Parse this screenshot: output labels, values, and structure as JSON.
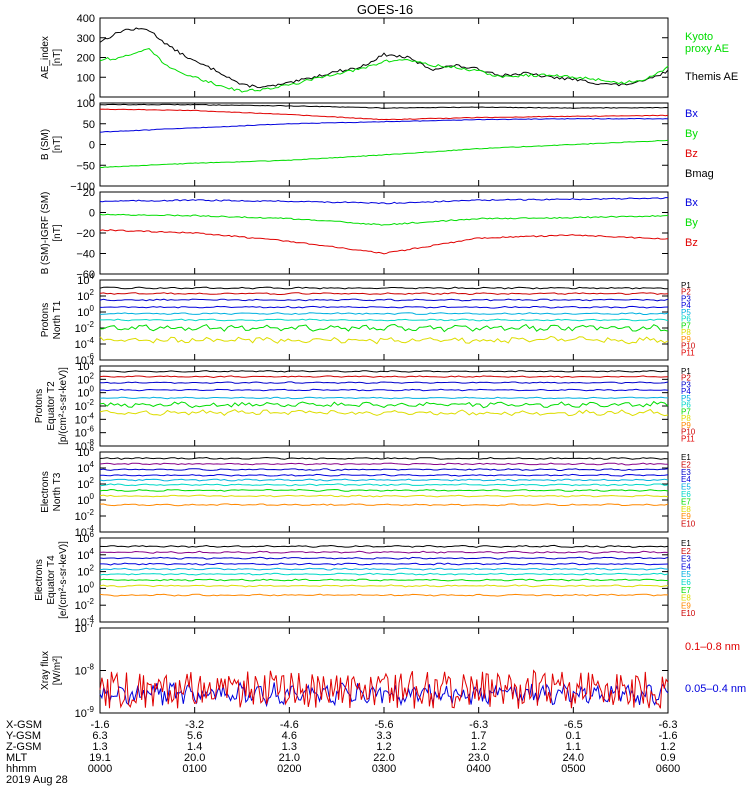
{
  "title": "GOES-16",
  "colors": {
    "black": "#000000",
    "red": "#e00000",
    "green": "#00dd00",
    "blue": "#0000dd",
    "dkblue": "#0000cc",
    "cyan": "#00b0e0",
    "teal": "#00d8c8",
    "yellow": "#dddd00",
    "orange": "#ff8800",
    "maroon": "#cc0000",
    "purple": "#880088",
    "darkred": "#aa0000"
  },
  "time_ticks": [
    "0000",
    "0100",
    "0200",
    "0300",
    "0400",
    "0500",
    "0600"
  ],
  "ephemeris": {
    "rows": [
      {
        "label": "X-GSM",
        "values": [
          "-1.6",
          "-3.2",
          "-4.6",
          "-5.6",
          "-6.3",
          "-6.5",
          "-6.3"
        ]
      },
      {
        "label": "Y-GSM",
        "values": [
          "6.3",
          "5.6",
          "4.6",
          "3.3",
          "1.7",
          "0.1",
          "-1.6"
        ]
      },
      {
        "label": "Z-GSM",
        "values": [
          "1.3",
          "1.4",
          "1.3",
          "1.2",
          "1.2",
          "1.1",
          "1.2"
        ]
      },
      {
        "label": "MLT",
        "values": [
          "19.1",
          "20.0",
          "21.0",
          "22.0",
          "23.0",
          "24.0",
          "0.9"
        ]
      },
      {
        "label": "hhmm",
        "values": [
          "0000",
          "0100",
          "0200",
          "0300",
          "0400",
          "0500",
          "0600"
        ]
      }
    ],
    "date": "2019 Aug 28"
  },
  "chart_data": [
    {
      "type": "line",
      "panel": "AE index",
      "ylabel": [
        "AE_index",
        "[nT]"
      ],
      "ylim": [
        0,
        400
      ],
      "yticks": [
        "0",
        "100",
        "200",
        "300",
        "400"
      ],
      "yvalues": [
        0,
        100,
        200,
        300,
        400
      ],
      "legend": [
        {
          "label": "Kyoto",
          "color": "green"
        },
        {
          "label": "proxy AE",
          "color": "green"
        },
        {
          "label": "Themis AE",
          "color": "black"
        }
      ],
      "series": [
        {
          "color": "black",
          "x": [
            0,
            0.25,
            0.5,
            0.75,
            1,
            1.25,
            1.5,
            1.75,
            2,
            2.25,
            2.5,
            2.75,
            3,
            3.25,
            3.5,
            3.75,
            4,
            4.25,
            4.5,
            4.75,
            5,
            5.25,
            5.5,
            5.75,
            6
          ],
          "y": [
            280,
            340,
            345,
            250,
            180,
            130,
            60,
            50,
            70,
            100,
            130,
            150,
            215,
            200,
            140,
            160,
            140,
            110,
            120,
            100,
            90,
            70,
            60,
            80,
            130
          ]
        },
        {
          "color": "green",
          "x": [
            0,
            0.25,
            0.5,
            0.75,
            1,
            1.25,
            1.5,
            1.75,
            2,
            2.25,
            2.5,
            2.75,
            3,
            3.25,
            3.5,
            3.75,
            4,
            4.25,
            4.5,
            4.75,
            5,
            5.25,
            5.5,
            5.75,
            6
          ],
          "y": [
            190,
            200,
            250,
            140,
            100,
            60,
            30,
            40,
            60,
            90,
            120,
            140,
            180,
            190,
            160,
            150,
            130,
            100,
            110,
            110,
            100,
            90,
            70,
            90,
            150
          ]
        }
      ]
    },
    {
      "type": "line",
      "panel": "B (SM)",
      "ylabel": [
        "B (SM)",
        "[nT]"
      ],
      "ylim": [
        -100,
        100
      ],
      "yticks": [
        "100",
        "50",
        "0",
        "−50",
        "−100"
      ],
      "yvalues": [
        100,
        50,
        0,
        -50,
        -100
      ],
      "legend": [
        {
          "label": "Bx",
          "color": "blue"
        },
        {
          "label": "By",
          "color": "green"
        },
        {
          "label": "Bz",
          "color": "red"
        },
        {
          "label": "Bmag",
          "color": "black"
        }
      ],
      "series": [
        {
          "color": "black",
          "x": [
            0,
            1,
            2,
            3,
            4,
            5,
            6
          ],
          "y": [
            96,
            96,
            93,
            88,
            90,
            88,
            89
          ]
        },
        {
          "color": "red",
          "x": [
            0,
            1,
            2,
            3,
            4,
            5,
            6
          ],
          "y": [
            85,
            82,
            72,
            60,
            65,
            68,
            70
          ]
        },
        {
          "color": "blue",
          "x": [
            0,
            1,
            2,
            3,
            4,
            5,
            6
          ],
          "y": [
            30,
            40,
            50,
            55,
            60,
            62,
            62
          ]
        },
        {
          "color": "green",
          "x": [
            0,
            1,
            2,
            3,
            4,
            5,
            6
          ],
          "y": [
            -55,
            -45,
            -38,
            -25,
            -10,
            0,
            10
          ]
        }
      ]
    },
    {
      "type": "line",
      "panel": "B (SM)-IGRF (SM)",
      "ylabel": [
        "B (SM)-IGRF (SM)",
        "[nT]"
      ],
      "ylim": [
        -60,
        20
      ],
      "yticks": [
        "20",
        "0",
        "−20",
        "−40",
        "−60"
      ],
      "yvalues": [
        20,
        0,
        -20,
        -40,
        -60
      ],
      "legend": [
        {
          "label": "Bx",
          "color": "blue"
        },
        {
          "label": "By",
          "color": "green"
        },
        {
          "label": "Bz",
          "color": "red"
        }
      ],
      "series": [
        {
          "color": "blue",
          "x": [
            0,
            1,
            2,
            3,
            4,
            5,
            6
          ],
          "y": [
            11,
            12,
            11,
            9,
            12,
            13,
            14
          ]
        },
        {
          "color": "green",
          "x": [
            0,
            1,
            2,
            3,
            4,
            5,
            6
          ],
          "y": [
            -2,
            -3,
            -6,
            -12,
            -6,
            -5,
            -3
          ]
        },
        {
          "color": "red",
          "x": [
            0,
            1,
            2,
            3,
            4,
            5,
            6
          ],
          "y": [
            -17,
            -20,
            -28,
            -40,
            -25,
            -22,
            -26
          ]
        }
      ]
    },
    {
      "type": "line",
      "panel": "Protons North T1",
      "ylabel": [
        "Protons",
        "North T1"
      ],
      "ylog": true,
      "ylim": [
        -6,
        4
      ],
      "ytick_exp": [
        "4",
        "2",
        "0",
        "-2",
        "-4",
        "-6"
      ],
      "channels": [
        "P1",
        "P2",
        "P3",
        "P4",
        "P5",
        "P6",
        "P7",
        "P8",
        "P9",
        "P10",
        "P11"
      ],
      "series": [
        {
          "color": "black",
          "level": 3.0
        },
        {
          "color": "maroon",
          "level": 2.3
        },
        {
          "color": "dkblue",
          "level": 1.5
        },
        {
          "color": "blue",
          "level": 0.6
        },
        {
          "color": "cyan",
          "level": -0.2
        },
        {
          "color": "teal",
          "level": -1.0
        },
        {
          "color": "green",
          "level": -2.0
        },
        {
          "color": "yellow",
          "level": -3.5
        }
      ]
    },
    {
      "type": "line",
      "panel": "Protons Equator T2",
      "ylabel": [
        "Protons",
        "Equator T2",
        "[p/(cm²-s-sr-keV)]"
      ],
      "ylog": true,
      "ylim": [
        -8,
        4
      ],
      "ytick_exp": [
        "4",
        "2",
        "0",
        "-2",
        "-4",
        "-6",
        "-8"
      ],
      "channels": [
        "P1",
        "P2",
        "P3",
        "P4",
        "P5",
        "P6",
        "P7",
        "P8",
        "P9",
        "P10",
        "P11"
      ],
      "series": [
        {
          "color": "black",
          "level": 3.2
        },
        {
          "color": "maroon",
          "level": 2.4
        },
        {
          "color": "dkblue",
          "level": 1.5
        },
        {
          "color": "blue",
          "level": 0.4
        },
        {
          "color": "cyan",
          "level": -0.8
        },
        {
          "color": "green",
          "level": -1.8
        },
        {
          "color": "yellow",
          "level": -3.0
        }
      ]
    },
    {
      "type": "line",
      "panel": "Electrons North T3",
      "ylabel": [
        "Electrons",
        "North T3"
      ],
      "ylog": true,
      "ylim": [
        -4,
        6
      ],
      "ytick_exp": [
        "6",
        "4",
        "2",
        "0",
        "-2",
        "-4"
      ],
      "channels": [
        "E1",
        "E2",
        "E3",
        "E4",
        "E5",
        "E6",
        "E7",
        "E8",
        "E9",
        "E10"
      ],
      "series": [
        {
          "color": "black",
          "level": 5.2
        },
        {
          "color": "purple",
          "level": 4.5
        },
        {
          "color": "dkblue",
          "level": 3.8
        },
        {
          "color": "blue",
          "level": 3.1
        },
        {
          "color": "cyan",
          "level": 2.5
        },
        {
          "color": "teal",
          "level": 1.9
        },
        {
          "color": "green",
          "level": 1.2
        },
        {
          "color": "yellow",
          "level": 0.5
        },
        {
          "color": "orange",
          "level": -0.6
        }
      ]
    },
    {
      "type": "line",
      "panel": "Electrons Equator T4",
      "ylabel": [
        "Electrons",
        "Equator T4",
        "[e/(cm²-s-sr-keV)]"
      ],
      "ylog": true,
      "ylim": [
        -4,
        6
      ],
      "ytick_exp": [
        "6",
        "4",
        "2",
        "0",
        "-2",
        "-4"
      ],
      "channels": [
        "E1",
        "E2",
        "E3",
        "E4",
        "E5",
        "E6",
        "E7",
        "E8",
        "E9",
        "E10"
      ],
      "series": [
        {
          "color": "black",
          "level": 5.0
        },
        {
          "color": "purple",
          "level": 4.3
        },
        {
          "color": "dkblue",
          "level": 3.6
        },
        {
          "color": "blue",
          "level": 2.9
        },
        {
          "color": "cyan",
          "level": 2.3
        },
        {
          "color": "teal",
          "level": 1.7
        },
        {
          "color": "green",
          "level": 1.0
        },
        {
          "color": "yellow",
          "level": 0.3
        },
        {
          "color": "orange",
          "level": -0.8
        }
      ]
    },
    {
      "type": "line",
      "panel": "Xray flux",
      "ylabel": [
        "Xray flux",
        "[W/m²]"
      ],
      "ylog": true,
      "ylim": [
        -9,
        -7
      ],
      "ytick_exp": [
        "-7",
        "-8",
        "-9"
      ],
      "legend": [
        {
          "label": "0.1–0.8 nm",
          "color": "red"
        },
        {
          "label": "0.05–0.4 nm",
          "color": "blue"
        }
      ],
      "series": [
        {
          "color": "blue",
          "level": -8.55
        },
        {
          "color": "red",
          "level": -8.9
        }
      ]
    }
  ]
}
